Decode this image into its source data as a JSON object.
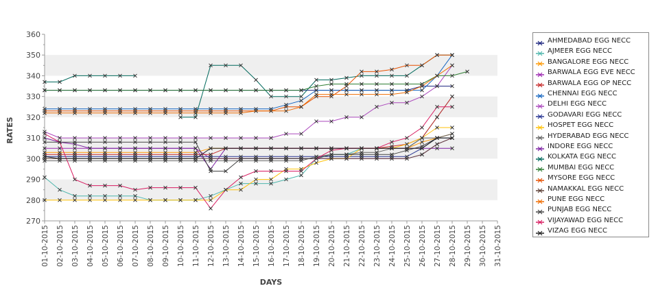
{
  "chart_data": {
    "type": "line",
    "xlabel": "DAYS",
    "ylabel": "RATES",
    "ylim": [
      270,
      360
    ],
    "yticks": [
      270,
      280,
      290,
      300,
      310,
      320,
      330,
      340,
      350,
      360
    ],
    "grid": "horizontal bands",
    "legend_position": "right",
    "x": [
      "01-10-2015",
      "02-10-2015",
      "03-10-2015",
      "04-10-2015",
      "05-10-2015",
      "06-10-2015",
      "07-10-2015",
      "08-10-2015",
      "09-10-2015",
      "10-10-2015",
      "11-10-2015",
      "12-10-2015",
      "13-10-2015",
      "14-10-2015",
      "15-10-2015",
      "16-10-2015",
      "17-10-2015",
      "18-10-2015",
      "19-10-2015",
      "20-10-2015",
      "21-10-2015",
      "22-10-2015",
      "23-10-2015",
      "24-10-2015",
      "25-10-2015",
      "26-10-2015",
      "27-10-2015",
      "28-10-2015",
      "29-10-2015",
      "30-10-2015",
      "31-10-2015"
    ],
    "series": [
      {
        "name": "AHMEDABAD EGG NECC",
        "color": "#1a237e",
        "values": [
          333,
          333,
          333,
          333,
          333,
          333,
          333,
          333,
          333,
          333,
          333,
          333,
          333,
          333,
          333,
          333,
          333,
          333,
          333,
          333,
          333,
          333,
          333,
          333,
          333,
          335,
          335,
          335,
          null,
          null,
          null
        ]
      },
      {
        "name": "AJMEER EGG NECC",
        "color": "#4db6ac",
        "values": [
          291,
          285,
          282,
          282,
          282,
          282,
          282,
          280,
          280,
          280,
          280,
          282,
          285,
          288,
          288,
          288,
          290,
          292,
          300,
          302,
          302,
          305,
          305,
          305,
          305,
          310,
          320,
          330,
          null,
          null,
          null
        ]
      },
      {
        "name": "BANGALORE EGG NECC",
        "color": "#ff9800",
        "values": [
          303,
          303,
          303,
          303,
          303,
          303,
          303,
          303,
          303,
          303,
          303,
          305,
          305,
          305,
          305,
          305,
          305,
          305,
          305,
          305,
          305,
          305,
          305,
          305,
          305,
          308,
          310,
          312,
          null,
          null,
          null
        ]
      },
      {
        "name": "BARWALA EGG EVE NECC",
        "color": "#9c27b0",
        "values": [
          305,
          305,
          305,
          305,
          305,
          305,
          305,
          305,
          305,
          305,
          305,
          300,
          300,
          300,
          300,
          300,
          300,
          300,
          300,
          300,
          300,
          300,
          300,
          300,
          300,
          302,
          307,
          310,
          null,
          null,
          null
        ]
      },
      {
        "name": "BARWALA EGG OP NECC",
        "color": "#c62828",
        "values": [
          302,
          302,
          302,
          302,
          302,
          302,
          302,
          302,
          302,
          302,
          302,
          302,
          305,
          305,
          305,
          305,
          305,
          305,
          305,
          305,
          305,
          305,
          305,
          306,
          307,
          310,
          320,
          330,
          null,
          null,
          null
        ]
      },
      {
        "name": "CHENNAI EGG NECC",
        "color": "#1565c0",
        "values": [
          324,
          324,
          324,
          324,
          324,
          324,
          324,
          324,
          324,
          324,
          324,
          324,
          324,
          324,
          324,
          324,
          326,
          328,
          333,
          333,
          333,
          333,
          333,
          333,
          333,
          333,
          340,
          350,
          null,
          null,
          null
        ]
      },
      {
        "name": "DELHI EGG NECC",
        "color": "#ab47bc",
        "values": [
          313,
          310,
          310,
          310,
          310,
          310,
          310,
          310,
          310,
          310,
          310,
          310,
          310,
          310,
          310,
          310,
          312,
          312,
          318,
          318,
          320,
          320,
          325,
          327,
          327,
          330,
          335,
          345,
          null,
          null,
          null
        ]
      },
      {
        "name": "GODAVARI EGG NECC",
        "color": "#283593",
        "values": [
          301,
          301,
          301,
          301,
          301,
          301,
          301,
          301,
          301,
          301,
          301,
          301,
          301,
          301,
          301,
          301,
          301,
          301,
          301,
          301,
          301,
          301,
          301,
          301,
          301,
          305,
          310,
          310,
          null,
          null,
          null
        ]
      },
      {
        "name": "HOSPET EGG NECC",
        "color": "#ffc107",
        "values": [
          280,
          280,
          280,
          280,
          280,
          280,
          280,
          280,
          280,
          280,
          280,
          280,
          285,
          285,
          290,
          290,
          295,
          295,
          298,
          300,
          300,
          305,
          305,
          305,
          307,
          310,
          315,
          315,
          null,
          null,
          null
        ]
      },
      {
        "name": "HYDERABAD EGG NECC",
        "color": "#616161",
        "values": [
          299,
          299,
          299,
          299,
          299,
          299,
          299,
          299,
          299,
          299,
          299,
          299,
          299,
          299,
          299,
          299,
          299,
          299,
          301,
          302,
          302,
          303,
          303,
          305,
          305,
          310,
          310,
          312,
          null,
          null,
          null
        ]
      },
      {
        "name": "INDORE EGG NECC",
        "color": "#7b1fa2",
        "values": [
          310,
          308,
          307,
          305,
          305,
          305,
          305,
          305,
          305,
          305,
          305,
          295,
          305,
          305,
          305,
          305,
          305,
          305,
          305,
          305,
          305,
          305,
          305,
          305,
          305,
          305,
          305,
          305,
          null,
          null,
          null
        ]
      },
      {
        "name": "KOLKATA EGG NECC",
        "color": "#00695c",
        "values": [
          337,
          337,
          340,
          340,
          340,
          340,
          340,
          null,
          null,
          320,
          320,
          345,
          345,
          345,
          338,
          330,
          330,
          330,
          338,
          338,
          339,
          340,
          340,
          340,
          340,
          345,
          350,
          350,
          null,
          null,
          null
        ]
      },
      {
        "name": "MUMBAI EGG NECC",
        "color": "#2e7d32",
        "values": [
          333,
          333,
          333,
          333,
          333,
          333,
          333,
          333,
          333,
          333,
          333,
          333,
          333,
          333,
          333,
          333,
          333,
          333,
          335,
          336,
          336,
          336,
          336,
          336,
          336,
          336,
          340,
          340,
          342,
          null,
          null
        ]
      },
      {
        "name": "MYSORE EGG NECC",
        "color": "#e65100",
        "values": [
          323,
          323,
          323,
          323,
          323,
          323,
          323,
          323,
          323,
          323,
          323,
          323,
          323,
          323,
          323,
          323,
          325,
          325,
          330,
          330,
          335,
          342,
          342,
          343,
          345,
          345,
          350,
          350,
          null,
          null,
          null
        ]
      },
      {
        "name": "NAMAKKAL EGG NECC",
        "color": "#5d4037",
        "values": [
          300,
          300,
          300,
          300,
          300,
          300,
          300,
          300,
          300,
          300,
          300,
          300,
          300,
          300,
          300,
          300,
          300,
          300,
          300,
          300,
          300,
          300,
          300,
          300,
          300,
          302,
          307,
          310,
          null,
          null,
          null
        ]
      },
      {
        "name": "PUNE EGG NECC",
        "color": "#ef6c00",
        "values": [
          322,
          322,
          322,
          322,
          322,
          322,
          322,
          322,
          322,
          322,
          322,
          322,
          322,
          322,
          323,
          323,
          323,
          325,
          331,
          331,
          331,
          331,
          331,
          331,
          332,
          335,
          340,
          345,
          null,
          null,
          null
        ]
      },
      {
        "name": "PUNJAB EGG NECC",
        "color": "#424242",
        "values": [
          308,
          308,
          308,
          308,
          308,
          308,
          308,
          308,
          308,
          308,
          308,
          294,
          294,
          300,
          300,
          300,
          300,
          300,
          300,
          302,
          302,
          302,
          302,
          302,
          304,
          306,
          310,
          310,
          null,
          null,
          null
        ]
      },
      {
        "name": "VIJAYAWAD EGG NECC",
        "color": "#d81b60",
        "values": [
          312,
          308,
          290,
          287,
          287,
          287,
          285,
          286,
          286,
          286,
          286,
          276,
          285,
          291,
          294,
          294,
          294,
          294,
          300,
          304,
          305,
          305,
          305,
          308,
          310,
          315,
          325,
          325,
          null,
          null,
          null
        ]
      },
      {
        "name": "VIZAG EGG NECC",
        "color": "#212121",
        "values": [
          301,
          300,
          300,
          300,
          300,
          300,
          300,
          300,
          300,
          300,
          300,
          305,
          305,
          305,
          305,
          305,
          305,
          305,
          305,
          305,
          305,
          305,
          305,
          305,
          305,
          305,
          310,
          310,
          null,
          null,
          null
        ]
      }
    ]
  }
}
